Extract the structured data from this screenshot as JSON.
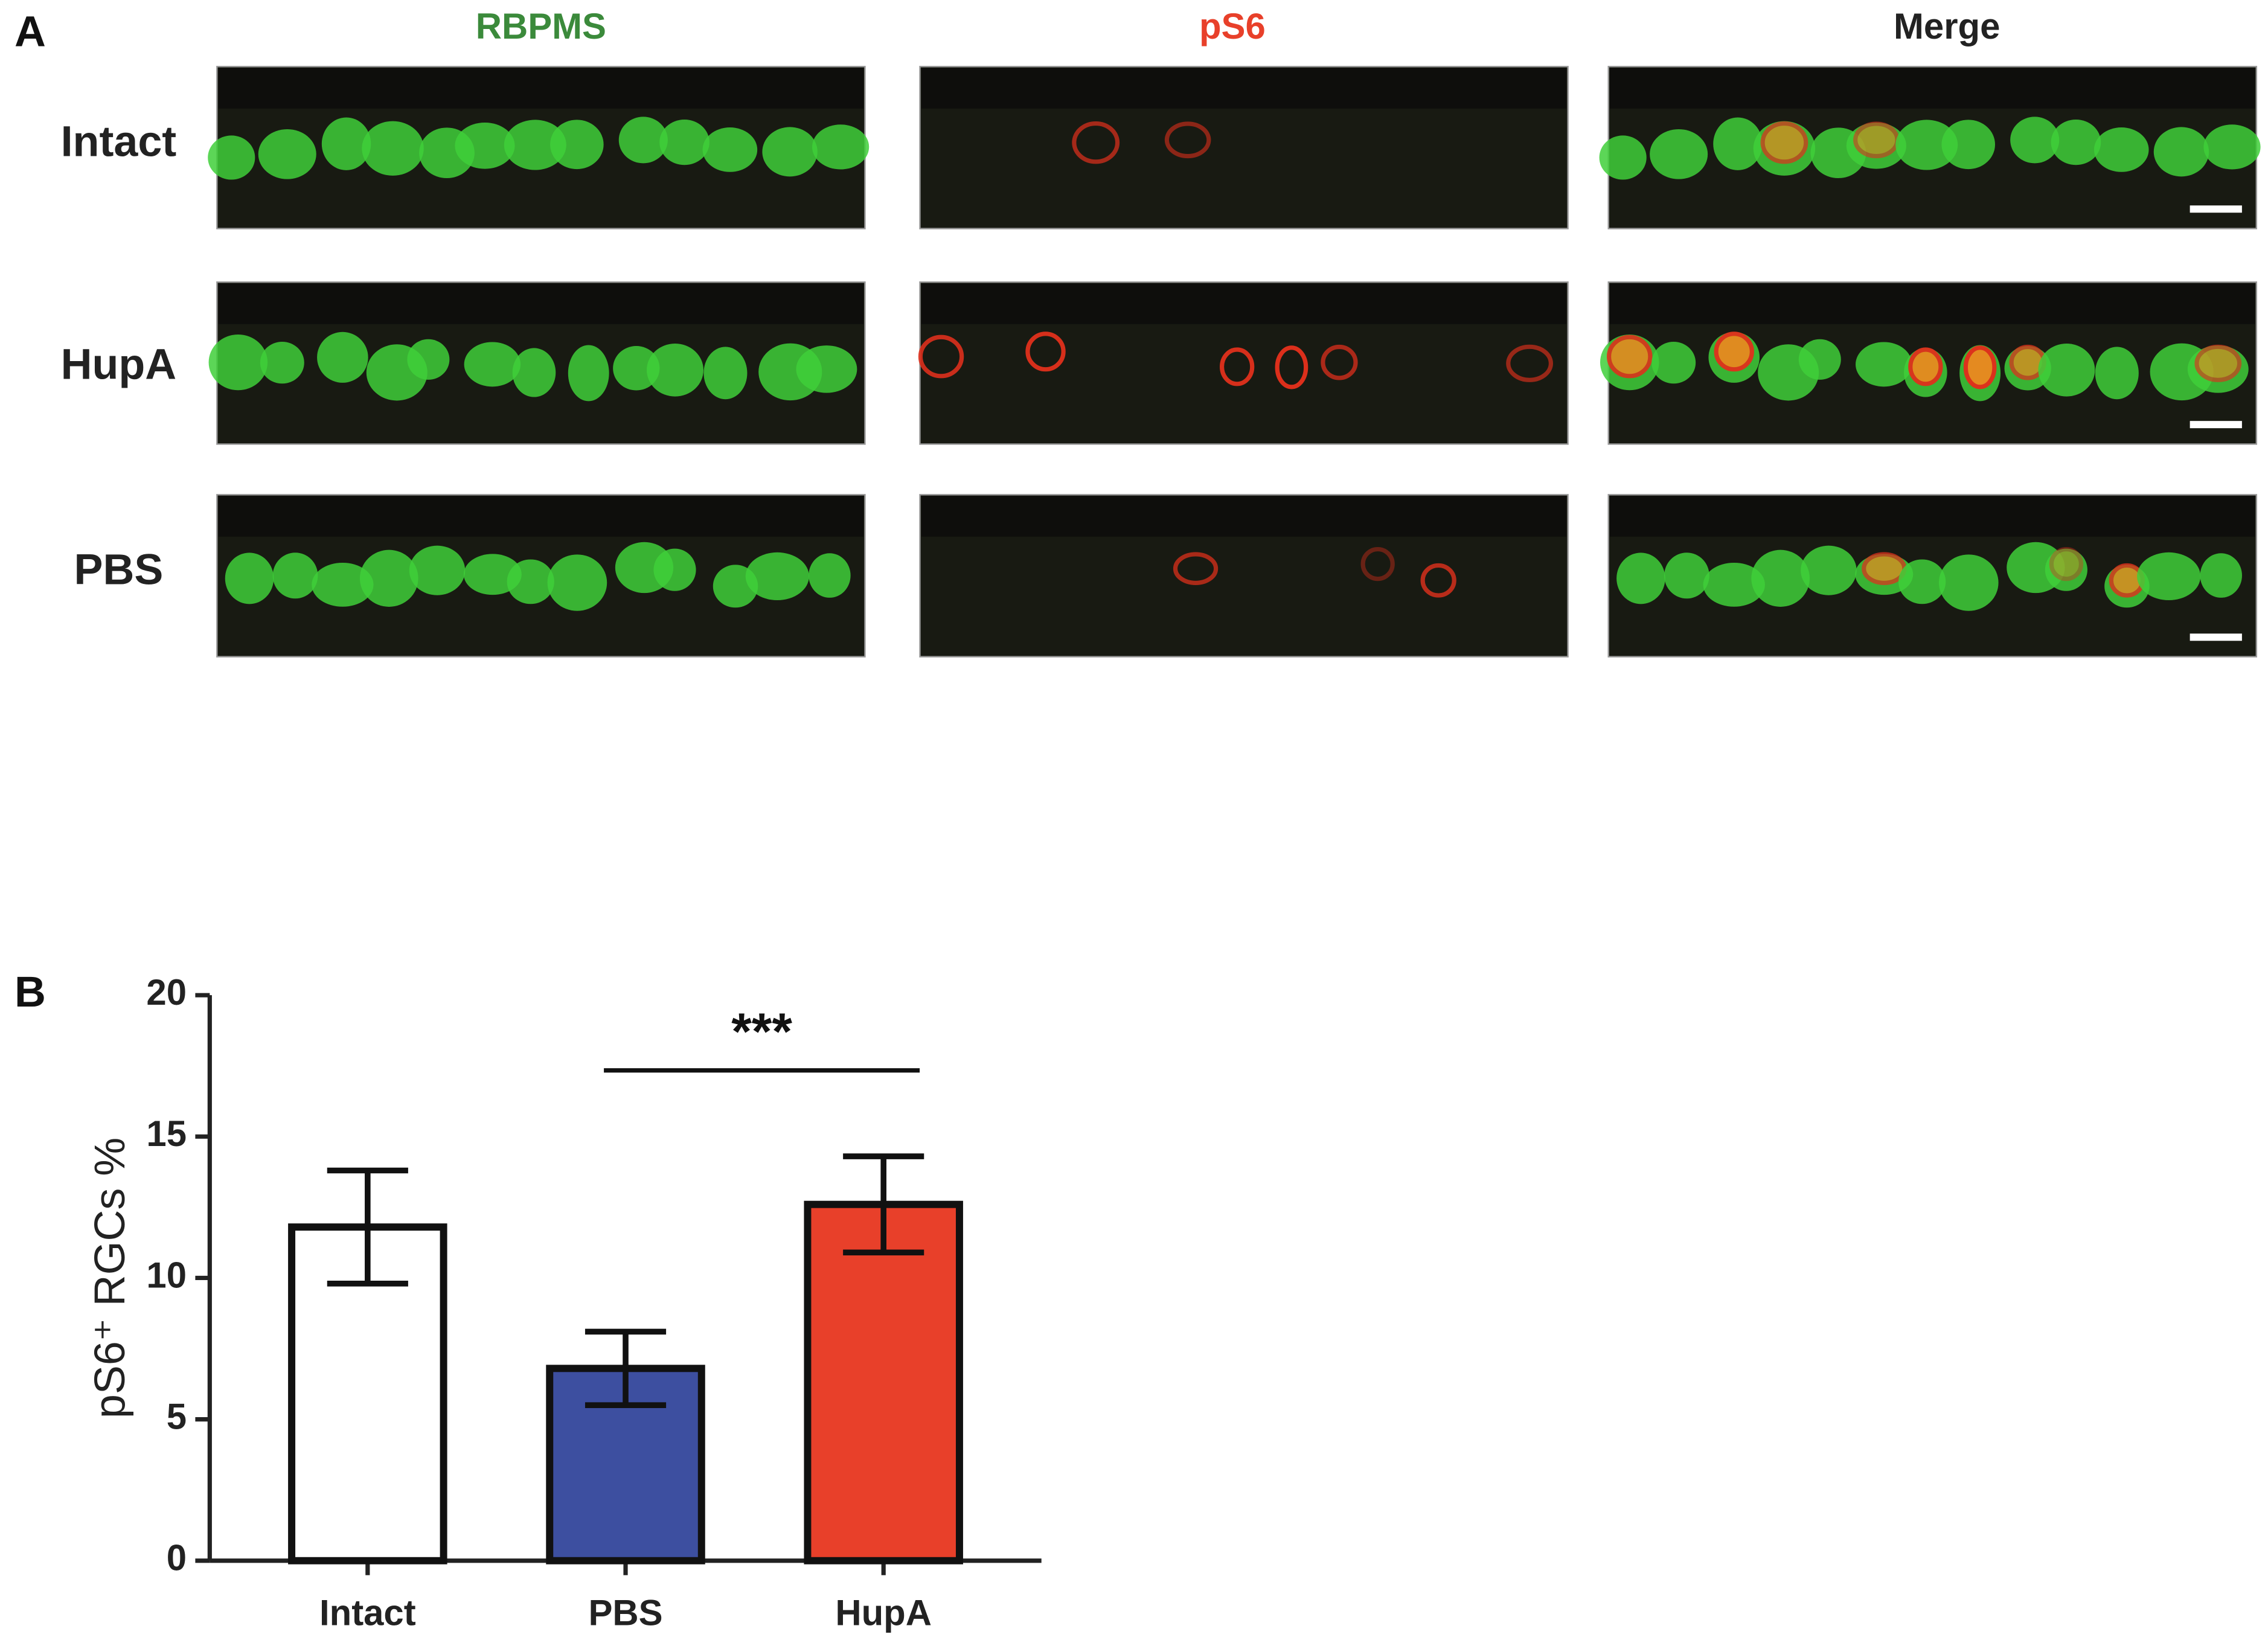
{
  "panel_labels": [
    "A",
    "B"
  ],
  "panel_a": {
    "columns": [
      "RBPMS",
      "pS6",
      "Merge"
    ],
    "rows": [
      "Intact",
      "HupA",
      "PBS"
    ]
  },
  "chart_data": {
    "type": "bar",
    "ylabel": "pS6⁺ RGCs %",
    "categories": [
      "Intact",
      "PBS",
      "HupA"
    ],
    "values": [
      11.8,
      6.8,
      12.6
    ],
    "errors": [
      2.0,
      1.3,
      1.7
    ],
    "colors": [
      "#ffffff",
      "#3d4fa0",
      "#e8402a"
    ],
    "ylim": [
      0,
      20
    ],
    "yticks": [
      0,
      5,
      10,
      15,
      20
    ],
    "significance": [
      {
        "label": "***",
        "between": [
          "PBS",
          "HupA"
        ]
      }
    ]
  }
}
